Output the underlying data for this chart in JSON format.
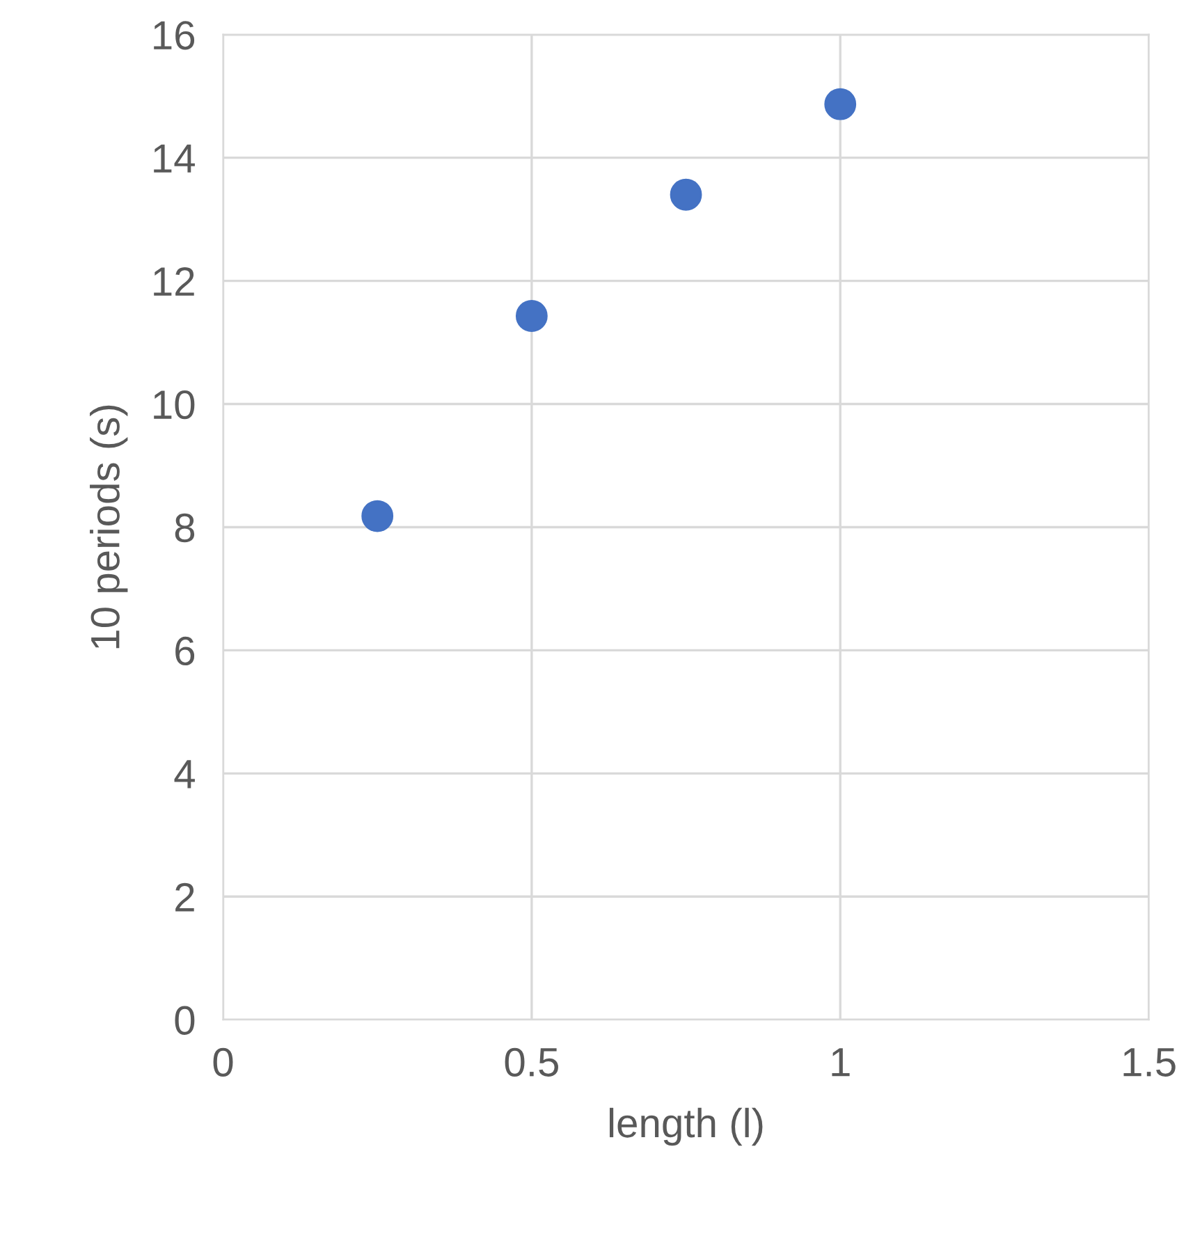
{
  "chart_data": {
    "type": "scatter",
    "xlabel": "length (l)",
    "ylabel": "10 periods (s)",
    "x": [
      0.25,
      0.5,
      0.75,
      1
    ],
    "series": [
      {
        "color": "#4472c4",
        "values": [
          8.18,
          11.43,
          13.4,
          14.87
        ]
      }
    ],
    "xlim": [
      0,
      1.5
    ],
    "xticks": [
      0,
      0.5,
      1,
      1.5
    ],
    "ylim": [
      0,
      16
    ],
    "yticks": [
      0,
      2,
      4,
      6,
      8,
      10,
      12,
      14,
      16
    ],
    "grid": true,
    "marker": "circle",
    "legend": false
  }
}
